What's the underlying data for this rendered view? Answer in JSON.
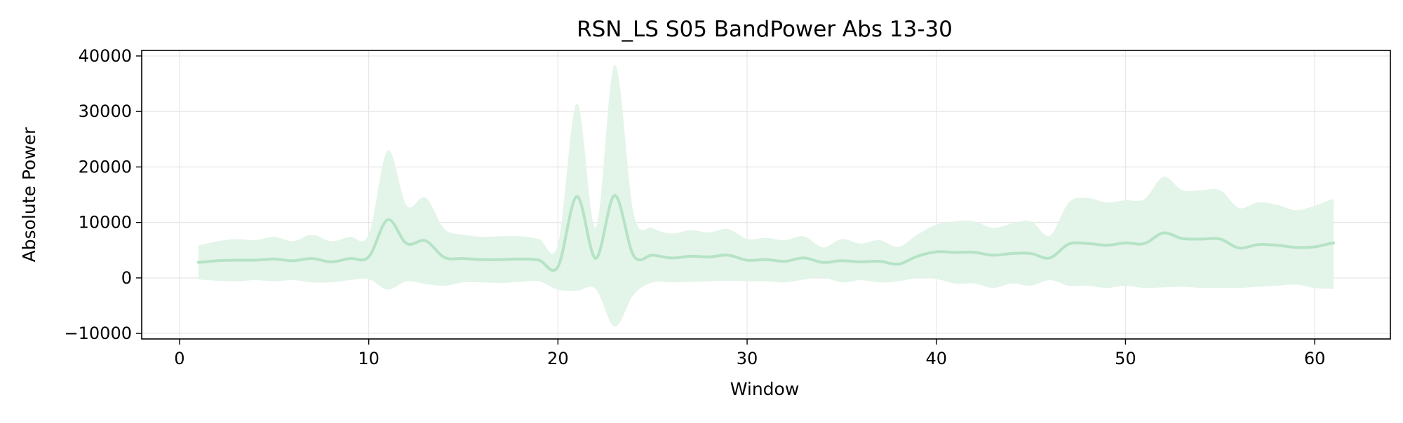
{
  "chart_data": {
    "type": "line",
    "title": "RSN_LS S05 BandPower Abs 13-30",
    "xlabel": "Window",
    "ylabel": "Absolute Power",
    "xlim": [
      -2,
      64
    ],
    "ylim": [
      -11000,
      41000
    ],
    "xticks": [
      0,
      10,
      20,
      30,
      40,
      50,
      60
    ],
    "xtick_labels": [
      "0",
      "10",
      "20",
      "30",
      "40",
      "50",
      "60"
    ],
    "yticks": [
      -10000,
      0,
      10000,
      20000,
      30000,
      40000
    ],
    "ytick_labels": [
      "−10000",
      "0",
      "10000",
      "20000",
      "30000",
      "40000"
    ],
    "grid": true,
    "legend": "none",
    "colors": {
      "line": "#b5e3c5",
      "band": "#e3f4e9"
    },
    "series": [
      {
        "x": [
          1,
          2,
          3,
          4,
          5,
          6,
          7,
          8,
          9,
          10,
          11,
          12,
          13,
          14,
          15,
          16,
          17,
          18,
          19,
          20,
          21,
          22,
          23,
          24,
          25,
          26,
          27,
          28,
          29,
          30,
          31,
          32,
          33,
          34,
          35,
          36,
          37,
          38,
          39,
          40,
          41,
          42,
          43,
          44,
          45,
          46,
          47,
          48,
          49,
          50,
          51,
          52,
          53,
          54,
          55,
          56,
          57,
          58,
          59,
          60,
          61
        ],
        "values": [
          2800,
          3100,
          3200,
          3200,
          3400,
          3100,
          3500,
          2900,
          3500,
          3800,
          10500,
          6200,
          6700,
          3700,
          3500,
          3300,
          3300,
          3400,
          3200,
          2000,
          14700,
          3500,
          14900,
          4000,
          4100,
          3600,
          3900,
          3800,
          4100,
          3200,
          3300,
          3000,
          3600,
          2800,
          3100,
          2900,
          3000,
          2500,
          3900,
          4700,
          4600,
          4600,
          4100,
          4400,
          4400,
          3600,
          6100,
          6200,
          5900,
          6300,
          6200,
          8100,
          7100,
          7000,
          7000,
          5400,
          6000,
          5900,
          5500,
          5600,
          6300
        ],
        "upper": [
          5900,
          6600,
          7000,
          6800,
          7400,
          6600,
          7800,
          6600,
          7400,
          7800,
          23000,
          13000,
          14500,
          8800,
          7800,
          7400,
          7500,
          7500,
          7000,
          6000,
          31500,
          9000,
          38500,
          11500,
          9000,
          8000,
          8600,
          8200,
          8800,
          7000,
          7200,
          6800,
          7500,
          5500,
          7000,
          6200,
          6800,
          5600,
          7800,
          9600,
          10200,
          10200,
          9000,
          9800,
          10200,
          7600,
          13600,
          14400,
          13600,
          14000,
          14200,
          18200,
          15800,
          15800,
          15800,
          12600,
          13600,
          13200,
          12200,
          13000,
          14200
        ],
        "lower": [
          -300,
          -500,
          -600,
          -400,
          -600,
          -400,
          -800,
          -800,
          -400,
          -200,
          -2100,
          -600,
          -1100,
          -1400,
          -800,
          -800,
          -900,
          -700,
          -600,
          -2100,
          -2300,
          -2000,
          -8800,
          -3000,
          -800,
          -800,
          -700,
          -600,
          -500,
          -600,
          -600,
          -800,
          -300,
          100,
          -800,
          -400,
          -800,
          -600,
          0,
          -200,
          -1000,
          -1000,
          -1800,
          -1000,
          -1400,
          -400,
          -1400,
          -1400,
          -1800,
          -1400,
          -1800,
          -1700,
          -1600,
          -1800,
          -1800,
          -1800,
          -1600,
          -1400,
          -1200,
          -1800,
          -2000
        ]
      }
    ]
  }
}
